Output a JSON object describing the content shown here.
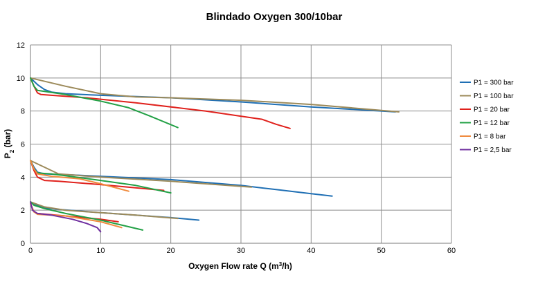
{
  "chart_data": {
    "type": "line",
    "title": "Blindado Oxygen 300/10bar",
    "xlabel": {
      "main": "Oxygen Flow rate Q (m",
      "sup": "3",
      "tail": "/h)"
    },
    "ylabel": {
      "main": "P",
      "sub": "2",
      "tail": " (bar)"
    },
    "xlim": [
      0,
      60
    ],
    "ylim": [
      0,
      12
    ],
    "xticks": [
      "0",
      "10",
      "20",
      "30",
      "40",
      "50",
      "60"
    ],
    "yticks": [
      "0",
      "2",
      "4",
      "6",
      "8",
      "10",
      "12"
    ],
    "grid": true,
    "legend_position": "right",
    "series": [
      {
        "name": "P1 = 300 bar",
        "color": "#1f6fb4",
        "curves": [
          [
            [
              0,
              10
            ],
            [
              1,
              9.6
            ],
            [
              2,
              9.3
            ],
            [
              3,
              9.15
            ],
            [
              5,
              9.05
            ],
            [
              10,
              8.95
            ],
            [
              20,
              8.8
            ],
            [
              30,
              8.55
            ],
            [
              40,
              8.25
            ],
            [
              52,
              7.95
            ]
          ],
          [
            [
              0,
              5
            ],
            [
              0.5,
              4.6
            ],
            [
              1,
              4.3
            ],
            [
              2,
              4.2
            ],
            [
              5,
              4.15
            ],
            [
              10,
              4.05
            ],
            [
              20,
              3.85
            ],
            [
              30,
              3.5
            ],
            [
              35,
              3.25
            ],
            [
              40,
              3.0
            ],
            [
              43,
              2.85
            ]
          ],
          [
            [
              0,
              2.5
            ],
            [
              1,
              2.3
            ],
            [
              2,
              2.15
            ],
            [
              4,
              2.05
            ],
            [
              10,
              1.85
            ],
            [
              20,
              1.55
            ],
            [
              24,
              1.4
            ]
          ]
        ]
      },
      {
        "name": "P1 = 100 bar",
        "color": "#9c8a5a",
        "curves": [
          [
            [
              0,
              10
            ],
            [
              5,
              9.5
            ],
            [
              10,
              9.05
            ],
            [
              15,
              8.85
            ],
            [
              20,
              8.8
            ],
            [
              30,
              8.65
            ],
            [
              40,
              8.4
            ],
            [
              52.5,
              7.95
            ]
          ],
          [
            [
              0,
              5
            ],
            [
              2,
              4.6
            ],
            [
              4,
              4.2
            ],
            [
              10,
              4.0
            ],
            [
              20,
              3.75
            ],
            [
              31.5,
              3.4
            ]
          ],
          [
            [
              0,
              2.5
            ],
            [
              2,
              2.2
            ],
            [
              5,
              2.0
            ],
            [
              10,
              1.85
            ],
            [
              15,
              1.7
            ],
            [
              21,
              1.5
            ]
          ]
        ]
      },
      {
        "name": "P1 = 20 bar",
        "color": "#e0211c",
        "curves": [
          [
            [
              0,
              10
            ],
            [
              0.5,
              9.5
            ],
            [
              1,
              9.1
            ],
            [
              1.5,
              9.0
            ],
            [
              3,
              8.95
            ],
            [
              8,
              8.8
            ],
            [
              15,
              8.5
            ],
            [
              25,
              8.0
            ],
            [
              33,
              7.5
            ],
            [
              35,
              7.2
            ],
            [
              37,
              6.95
            ]
          ],
          [
            [
              0,
              5
            ],
            [
              0.5,
              4.4
            ],
            [
              1,
              4.0
            ],
            [
              2,
              3.8
            ],
            [
              4,
              3.75
            ],
            [
              10,
              3.55
            ],
            [
              19,
              3.2
            ]
          ],
          [
            [
              0,
              2.4
            ],
            [
              0.5,
              1.9
            ],
            [
              1,
              1.8
            ],
            [
              5,
              1.65
            ],
            [
              10,
              1.45
            ],
            [
              12.5,
              1.3
            ]
          ]
        ]
      },
      {
        "name": "P1 = 12 bar",
        "color": "#22a045",
        "curves": [
          [
            [
              0,
              10
            ],
            [
              0.5,
              9.5
            ],
            [
              1,
              9.25
            ],
            [
              5,
              9.0
            ],
            [
              10,
              8.6
            ],
            [
              14,
              8.2
            ],
            [
              17,
              7.7
            ],
            [
              21,
              7.0
            ]
          ],
          [
            [
              0,
              5
            ],
            [
              0.5,
              4.5
            ],
            [
              1,
              4.25
            ],
            [
              3,
              4.2
            ],
            [
              10,
              3.8
            ],
            [
              15,
              3.5
            ],
            [
              20,
              3.05
            ]
          ],
          [
            [
              0,
              2.5
            ],
            [
              0.5,
              2.3
            ],
            [
              2,
              2.1
            ],
            [
              5,
              1.8
            ],
            [
              10,
              1.4
            ],
            [
              16,
              0.8
            ]
          ]
        ]
      },
      {
        "name": "P1 = 8 bar",
        "color": "#f08a3c",
        "curves": [
          [
            [
              0,
              5
            ],
            [
              0.5,
              4.5
            ],
            [
              1,
              4.2
            ],
            [
              3,
              4.05
            ],
            [
              7,
              3.9
            ],
            [
              10,
              3.6
            ],
            [
              14,
              3.15
            ]
          ],
          [
            [
              0,
              2.4
            ],
            [
              0.5,
              1.9
            ],
            [
              1,
              1.75
            ],
            [
              5,
              1.65
            ],
            [
              10,
              1.3
            ],
            [
              13,
              0.95
            ]
          ]
        ]
      },
      {
        "name": "P1 = 2,5 bar",
        "color": "#7030a0",
        "curves": [
          [
            [
              0,
              2.5
            ],
            [
              0.3,
              2.0
            ],
            [
              1,
              1.8
            ],
            [
              3,
              1.7
            ],
            [
              6,
              1.45
            ],
            [
              8,
              1.2
            ],
            [
              9.5,
              0.95
            ],
            [
              10,
              0.7
            ]
          ]
        ]
      }
    ]
  }
}
